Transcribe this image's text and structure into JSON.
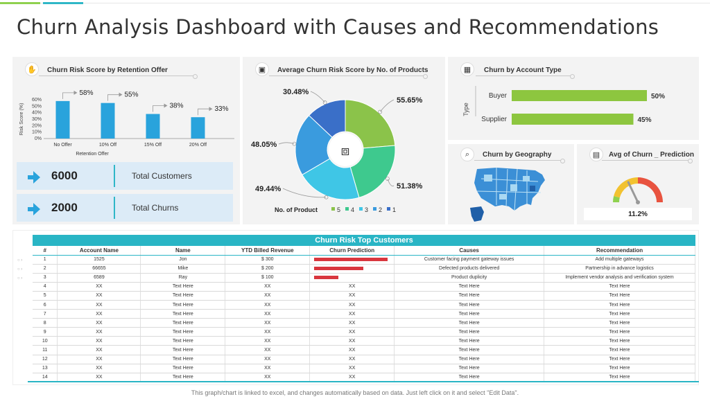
{
  "page": {
    "title": "Churn Analysis Dashboard with Causes and Recommendations",
    "footer": "This graph/chart is linked to excel, and changes automatically based on data. Just left click on it and select \"Edit Data\"."
  },
  "panels": {
    "retention": {
      "title": "Churn Risk Score by Retention Offer",
      "icon": "hand-coin-icon"
    },
    "products": {
      "title": "Average Churn Risk Score by No. of Products",
      "icon": "box-icon"
    },
    "account": {
      "title": "Churn by Account Type",
      "icon": "building-icon"
    },
    "geo": {
      "title": "Churn by Geography",
      "icon": "magnifier-icon"
    },
    "prediction": {
      "title": "Avg of Churn _ Prediction",
      "icon": "document-icon"
    }
  },
  "kpis": [
    {
      "value": "6000",
      "label": "Total Customers"
    },
    {
      "value": "2000",
      "label": "Total Churns"
    }
  ],
  "gauge": {
    "value_label": "11.2%",
    "value": 0.112,
    "colors": [
      "#8fd14f",
      "#f2c230",
      "#e8533f"
    ]
  },
  "chart_data": [
    {
      "type": "bar",
      "title": "Churn Risk Score by Retention Offer",
      "categories": [
        "No Offer",
        "10% Off",
        "15% Off",
        "20% Off"
      ],
      "values": [
        58,
        55,
        38,
        33
      ],
      "value_labels": [
        "58%",
        "55%",
        "38%",
        "33%"
      ],
      "xlabel": "Retention Offer",
      "ylabel": "Risk Score (%)",
      "yticks": [
        "60%",
        "50%",
        "40%",
        "30%",
        "20%",
        "10%",
        "0%"
      ],
      "ylim": [
        0,
        60
      ],
      "color": "#29a3dc"
    },
    {
      "type": "pie",
      "title": "Average Churn Risk Score by No. of Products",
      "legend_title": "No. of Product",
      "legend": [
        "5",
        "4",
        "3",
        "2",
        "1"
      ],
      "slices": [
        {
          "name": "5",
          "value": 55.65,
          "label": "55.65%",
          "color": "#8bc34a"
        },
        {
          "name": "4",
          "value": 51.38,
          "label": "51.38%",
          "color": "#3ec98e"
        },
        {
          "name": "3",
          "value": 49.44,
          "label": "49.44%",
          "color": "#3fc6e6"
        },
        {
          "name": "2",
          "value": 48.05,
          "label": "48.05%",
          "color": "#3a9bde"
        },
        {
          "name": "1",
          "value": 30.48,
          "label": "30.48%",
          "color": "#3a6fc8"
        }
      ]
    },
    {
      "type": "bar",
      "title": "Churn by Account Type",
      "orientation": "horizontal",
      "categories": [
        "Buyer",
        "Supplier"
      ],
      "values": [
        50,
        45
      ],
      "value_labels": [
        "50%",
        "45%"
      ],
      "ylabel": "Type",
      "xlim": [
        0,
        50
      ],
      "color": "#8dc63f"
    }
  ],
  "table": {
    "title": "Churn Risk Top Customers",
    "headers": [
      "#",
      "Account Name",
      "Name",
      "YTD Billed Revenue",
      "Churn Prediction",
      "Causes",
      "Recommendation"
    ],
    "rows": [
      [
        "1",
        "1525",
        "Jon",
        "$ 300",
        "",
        "Customer facing payment gateway issues",
        "Add multiple gateways"
      ],
      [
        "2",
        "66655",
        "Mike",
        "$ 200",
        "",
        "Defected products delivered",
        "Partnership in advance logistics"
      ],
      [
        "3",
        "6589",
        "Ray",
        "$ 100",
        "",
        "Product duplicity",
        "Implement vendor analysis and verification system"
      ],
      [
        "4",
        "XX",
        "Text Here",
        "XX",
        "XX",
        "Text Here",
        "Text Here"
      ],
      [
        "5",
        "XX",
        "Text Here",
        "XX",
        "XX",
        "Text Here",
        "Text Here"
      ],
      [
        "6",
        "XX",
        "Text Here",
        "XX",
        "XX",
        "Text Here",
        "Text Here"
      ],
      [
        "7",
        "XX",
        "Text Here",
        "XX",
        "XX",
        "Text Here",
        "Text Here"
      ],
      [
        "8",
        "XX",
        "Text Here",
        "XX",
        "XX",
        "Text Here",
        "Text Here"
      ],
      [
        "9",
        "XX",
        "Text Here",
        "XX",
        "XX",
        "Text Here",
        "Text Here"
      ],
      [
        "10",
        "XX",
        "Text Here",
        "XX",
        "XX",
        "Text Here",
        "Text Here"
      ],
      [
        "11",
        "XX",
        "Text Here",
        "XX",
        "XX",
        "Text Here",
        "Text Here"
      ],
      [
        "12",
        "XX",
        "Text Here",
        "XX",
        "XX",
        "Text Here",
        "Text Here"
      ],
      [
        "13",
        "XX",
        "Text Here",
        "XX",
        "XX",
        "Text Here",
        "Text Here"
      ],
      [
        "14",
        "XX",
        "Text Here",
        "XX",
        "XX",
        "Text Here",
        "Text Here"
      ]
    ],
    "prediction_fractions": [
      1.0,
      0.67,
      0.33
    ]
  }
}
